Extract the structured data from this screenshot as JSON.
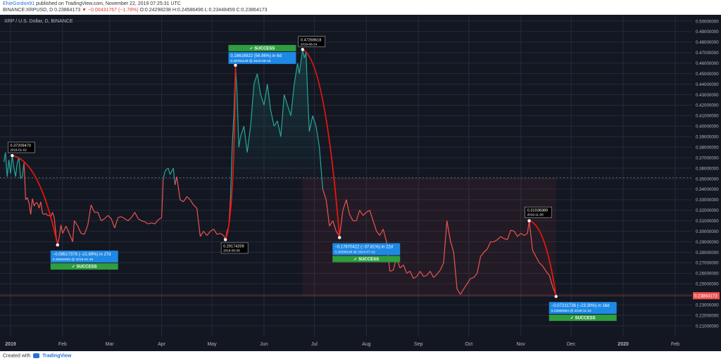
{
  "header": {
    "author": "EhieGordon91",
    "published": "published on TradingView.com, November 22, 2019 07:25:31 UTC",
    "symbol": "BINANCE:XRPUSD, D",
    "last": "0.23864173",
    "change": "▼ −0.00431767 (−1.78%)",
    "ohlc": "O:0.24298238 H:0.24586496 L:0.23448459 C:0.23864173"
  },
  "footer": {
    "created_with": "Created with",
    "brand": "TradingView"
  },
  "colors": {
    "background": "#131722",
    "grid": "#242a38",
    "up_line": "#26a69a",
    "down_line": "#ef5350",
    "curve": "#e8160c",
    "label_blue": "#1e88e5",
    "label_green": "#2e9e3e",
    "last_price": "#ef5350"
  },
  "chart_data": {
    "type": "line",
    "title": "XRP / U.S. Dollar, D, BINANCE",
    "ylim": [
      0.21,
      0.5
    ],
    "y_ticks": [
      "0.21000000",
      "0.22000000",
      "0.23000000",
      "0.24000000",
      "0.25000000",
      "0.26000000",
      "0.27000000",
      "0.28000000",
      "0.29000000",
      "0.30000000",
      "0.31000000",
      "0.32000000",
      "0.33000000",
      "0.34000000",
      "0.35000000",
      "0.36000000",
      "0.37000000",
      "0.38000000",
      "0.39000000",
      "0.40000000",
      "0.41000000",
      "0.42000000",
      "0.43000000",
      "0.44000000",
      "0.45000000",
      "0.46000000",
      "0.47000000",
      "0.48000000",
      "0.49000000",
      "0.50000000"
    ],
    "x_ticks": [
      {
        "label": "2019",
        "date": "2019-01-01"
      },
      {
        "label": "Feb",
        "date": "2019-02-01"
      },
      {
        "label": "Mar",
        "date": "2019-03-01"
      },
      {
        "label": "Apr",
        "date": "2019-04-01"
      },
      {
        "label": "May",
        "date": "2019-05-01"
      },
      {
        "label": "Jun",
        "date": "2019-06-01"
      },
      {
        "label": "Jul",
        "date": "2019-07-01"
      },
      {
        "label": "Aug",
        "date": "2019-08-01"
      },
      {
        "label": "Sep",
        "date": "2019-09-01"
      },
      {
        "label": "Oct",
        "date": "2019-10-01"
      },
      {
        "label": "Nov",
        "date": "2019-11-01"
      },
      {
        "label": "Dec",
        "date": "2019-12-01"
      },
      {
        "label": "2020",
        "date": "2020-01-01"
      },
      {
        "label": "Feb",
        "date": "2020-02-01"
      }
    ],
    "dashed_level": 0.351,
    "last_price": 0.23864173,
    "last_price_label": "0.23864173",
    "series": [
      {
        "points": [
          [
            "2018-12-28",
            0.366
          ],
          [
            "2018-12-29",
            0.375
          ],
          [
            "2018-12-30",
            0.352
          ],
          [
            "2018-12-31",
            0.368
          ],
          [
            "2019-01-01",
            0.355
          ],
          [
            "2019-01-02",
            0.372
          ],
          [
            "2019-01-03",
            0.36
          ],
          [
            "2019-01-04",
            0.352
          ],
          [
            "2019-01-05",
            0.365
          ],
          [
            "2019-01-06",
            0.37
          ],
          [
            "2019-01-07",
            0.35
          ],
          [
            "2019-01-08",
            0.352
          ],
          [
            "2019-01-09",
            0.365
          ],
          [
            "2019-01-10",
            0.33
          ],
          [
            "2019-01-11",
            0.332
          ],
          [
            "2019-01-12",
            0.327
          ],
          [
            "2019-01-13",
            0.316
          ],
          [
            "2019-01-14",
            0.331
          ],
          [
            "2019-01-15",
            0.324
          ],
          [
            "2019-01-16",
            0.327
          ],
          [
            "2019-01-17",
            0.327
          ],
          [
            "2019-01-18",
            0.322
          ],
          [
            "2019-01-19",
            0.328
          ],
          [
            "2019-01-20",
            0.317
          ],
          [
            "2019-01-21",
            0.316
          ],
          [
            "2019-01-22",
            0.317
          ],
          [
            "2019-01-23",
            0.315
          ],
          [
            "2019-01-24",
            0.315
          ],
          [
            "2019-01-25",
            0.314
          ],
          [
            "2019-01-26",
            0.318
          ],
          [
            "2019-01-27",
            0.313
          ],
          [
            "2019-01-28",
            0.297
          ],
          [
            "2019-01-29",
            0.287
          ],
          [
            "2019-01-30",
            0.294
          ],
          [
            "2019-01-31",
            0.306
          ],
          [
            "2019-02-01",
            0.298
          ],
          [
            "2019-02-03",
            0.305
          ],
          [
            "2019-02-05",
            0.298
          ],
          [
            "2019-02-07",
            0.29
          ],
          [
            "2019-02-08",
            0.31
          ],
          [
            "2019-02-10",
            0.305
          ],
          [
            "2019-02-12",
            0.298
          ],
          [
            "2019-02-14",
            0.297
          ],
          [
            "2019-02-16",
            0.306
          ],
          [
            "2019-02-18",
            0.325
          ],
          [
            "2019-02-20",
            0.318
          ],
          [
            "2019-02-22",
            0.318
          ],
          [
            "2019-02-24",
            0.31
          ],
          [
            "2019-02-26",
            0.312
          ],
          [
            "2019-02-28",
            0.315
          ],
          [
            "2019-03-02",
            0.312
          ],
          [
            "2019-03-04",
            0.303
          ],
          [
            "2019-03-06",
            0.313
          ],
          [
            "2019-03-08",
            0.314
          ],
          [
            "2019-03-10",
            0.312
          ],
          [
            "2019-03-12",
            0.31
          ],
          [
            "2019-03-14",
            0.313
          ],
          [
            "2019-03-16",
            0.318
          ],
          [
            "2019-03-18",
            0.312
          ],
          [
            "2019-03-20",
            0.31
          ],
          [
            "2019-03-22",
            0.309
          ],
          [
            "2019-03-24",
            0.307
          ],
          [
            "2019-03-26",
            0.308
          ],
          [
            "2019-03-28",
            0.307
          ],
          [
            "2019-03-30",
            0.311
          ],
          [
            "2019-04-01",
            0.313
          ],
          [
            "2019-04-02",
            0.35
          ],
          [
            "2019-04-03",
            0.357
          ],
          [
            "2019-04-04",
            0.359
          ],
          [
            "2019-04-05",
            0.36
          ],
          [
            "2019-04-06",
            0.354
          ],
          [
            "2019-04-08",
            0.36
          ],
          [
            "2019-04-09",
            0.344
          ],
          [
            "2019-04-10",
            0.352
          ],
          [
            "2019-04-12",
            0.33
          ],
          [
            "2019-04-14",
            0.328
          ],
          [
            "2019-04-16",
            0.333
          ],
          [
            "2019-04-18",
            0.33
          ],
          [
            "2019-04-20",
            0.325
          ],
          [
            "2019-04-22",
            0.322
          ],
          [
            "2019-04-24",
            0.295
          ],
          [
            "2019-04-26",
            0.3
          ],
          [
            "2019-04-28",
            0.296
          ],
          [
            "2019-04-30",
            0.3
          ],
          [
            "2019-05-02",
            0.302
          ],
          [
            "2019-05-04",
            0.297
          ],
          [
            "2019-05-06",
            0.298
          ],
          [
            "2019-05-08",
            0.296
          ],
          [
            "2019-05-09",
            0.292
          ],
          [
            "2019-05-10",
            0.3
          ],
          [
            "2019-05-11",
            0.305
          ],
          [
            "2019-05-12",
            0.33
          ],
          [
            "2019-05-13",
            0.38
          ],
          [
            "2019-05-14",
            0.41
          ],
          [
            "2019-05-15",
            0.458
          ],
          [
            "2019-05-16",
            0.43
          ],
          [
            "2019-05-17",
            0.38
          ],
          [
            "2019-05-18",
            0.39
          ],
          [
            "2019-05-20",
            0.4
          ],
          [
            "2019-05-22",
            0.375
          ],
          [
            "2019-05-24",
            0.4
          ],
          [
            "2019-05-26",
            0.44
          ],
          [
            "2019-05-28",
            0.45
          ],
          [
            "2019-05-30",
            0.43
          ],
          [
            "2019-06-01",
            0.42
          ],
          [
            "2019-06-03",
            0.44
          ],
          [
            "2019-06-05",
            0.415
          ],
          [
            "2019-06-07",
            0.4
          ],
          [
            "2019-06-09",
            0.405
          ],
          [
            "2019-06-11",
            0.39
          ],
          [
            "2019-06-13",
            0.43
          ],
          [
            "2019-06-15",
            0.42
          ],
          [
            "2019-06-17",
            0.41
          ],
          [
            "2019-06-19",
            0.44
          ],
          [
            "2019-06-21",
            0.46
          ],
          [
            "2019-06-22",
            0.45
          ],
          [
            "2019-06-24",
            0.473
          ],
          [
            "2019-06-25",
            0.465
          ],
          [
            "2019-06-26",
            0.47
          ],
          [
            "2019-06-27",
            0.43
          ],
          [
            "2019-06-28",
            0.395
          ],
          [
            "2019-06-30",
            0.41
          ],
          [
            "2019-07-02",
            0.4
          ],
          [
            "2019-07-04",
            0.38
          ],
          [
            "2019-07-06",
            0.34
          ],
          [
            "2019-07-08",
            0.33
          ],
          [
            "2019-07-10",
            0.305
          ],
          [
            "2019-07-12",
            0.31
          ],
          [
            "2019-07-14",
            0.3
          ],
          [
            "2019-07-16",
            0.295
          ],
          [
            "2019-07-18",
            0.32
          ],
          [
            "2019-07-20",
            0.33
          ],
          [
            "2019-07-22",
            0.316
          ],
          [
            "2019-07-24",
            0.31
          ],
          [
            "2019-07-26",
            0.31
          ],
          [
            "2019-07-28",
            0.32
          ],
          [
            "2019-07-30",
            0.315
          ],
          [
            "2019-08-01",
            0.318
          ],
          [
            "2019-08-03",
            0.32
          ],
          [
            "2019-08-05",
            0.31
          ],
          [
            "2019-08-07",
            0.3
          ],
          [
            "2019-08-09",
            0.296
          ],
          [
            "2019-08-11",
            0.302
          ],
          [
            "2019-08-13",
            0.29
          ],
          [
            "2019-08-15",
            0.262
          ],
          [
            "2019-08-17",
            0.263
          ],
          [
            "2019-08-19",
            0.275
          ],
          [
            "2019-08-21",
            0.265
          ],
          [
            "2019-08-23",
            0.268
          ],
          [
            "2019-08-25",
            0.26
          ],
          [
            "2019-08-27",
            0.262
          ],
          [
            "2019-08-29",
            0.255
          ],
          [
            "2019-08-31",
            0.257
          ],
          [
            "2019-09-02",
            0.262
          ],
          [
            "2019-09-04",
            0.257
          ],
          [
            "2019-09-06",
            0.258
          ],
          [
            "2019-09-08",
            0.262
          ],
          [
            "2019-09-10",
            0.256
          ],
          [
            "2019-09-12",
            0.259
          ],
          [
            "2019-09-14",
            0.263
          ],
          [
            "2019-09-16",
            0.27
          ],
          [
            "2019-09-18",
            0.31
          ],
          [
            "2019-09-20",
            0.291
          ],
          [
            "2019-09-22",
            0.28
          ],
          [
            "2019-09-24",
            0.245
          ],
          [
            "2019-09-26",
            0.24
          ],
          [
            "2019-09-28",
            0.245
          ],
          [
            "2019-09-30",
            0.25
          ],
          [
            "2019-10-02",
            0.255
          ],
          [
            "2019-10-04",
            0.256
          ],
          [
            "2019-10-06",
            0.26
          ],
          [
            "2019-10-08",
            0.276
          ],
          [
            "2019-10-10",
            0.28
          ],
          [
            "2019-10-12",
            0.283
          ],
          [
            "2019-10-14",
            0.29
          ],
          [
            "2019-10-16",
            0.29
          ],
          [
            "2019-10-18",
            0.292
          ],
          [
            "2019-10-20",
            0.295
          ],
          [
            "2019-10-22",
            0.293
          ],
          [
            "2019-10-24",
            0.292
          ],
          [
            "2019-10-26",
            0.301
          ],
          [
            "2019-10-28",
            0.3
          ],
          [
            "2019-10-30",
            0.295
          ],
          [
            "2019-11-01",
            0.298
          ],
          [
            "2019-11-03",
            0.296
          ],
          [
            "2019-11-05",
            0.298
          ],
          [
            "2019-11-06",
            0.31
          ],
          [
            "2019-11-08",
            0.282
          ],
          [
            "2019-11-10",
            0.276
          ],
          [
            "2019-11-12",
            0.27
          ],
          [
            "2019-11-14",
            0.267
          ],
          [
            "2019-11-16",
            0.262
          ],
          [
            "2019-11-18",
            0.258
          ],
          [
            "2019-11-20",
            0.247
          ],
          [
            "2019-11-22",
            0.239
          ]
        ]
      }
    ],
    "annotations": [
      {
        "kind": "price",
        "date": "2019-01-02",
        "value": 0.3720947,
        "line1": "0.37209470",
        "line2": "2019-01-02",
        "placement": "above"
      },
      {
        "kind": "price",
        "date": "2019-05-09",
        "value": 0.29174209,
        "line1": "0.29174209",
        "line2": "2019-05-09",
        "placement": "below"
      },
      {
        "kind": "price",
        "date": "2019-06-24",
        "value": 0.47269618,
        "line1": "0.47269618",
        "line2": "2019-06-24",
        "placement": "above"
      },
      {
        "kind": "price",
        "date": "2019-11-06",
        "value": 0.31038389,
        "line1": "0.31038389",
        "line2": "2019-11-06",
        "placement": "above"
      },
      {
        "kind": "change",
        "date": "2019-01-29",
        "value": 0.28692093,
        "line1": "−0.08517378 (−22.89%) in 27d",
        "line2": "0.28692093 @ 2019-01-29",
        "success": "✓ SUCCESS",
        "placement": "below"
      },
      {
        "kind": "change",
        "date": "2019-05-15",
        "value": 0.4579113,
        "line1": "0.16616922 (56.96%) in 6d",
        "line2": "0.45791130 @ 2019-05-15",
        "success": "✓ SUCCESS",
        "placement": "above"
      },
      {
        "kind": "change",
        "date": "2019-07-16",
        "value": 0.29399196,
        "line1": "−0.17870422 (−37.81%) in 22d",
        "line2": "0.29399196 @ 2019-07-16",
        "success": "✓ SUCCESS",
        "placement": "below"
      },
      {
        "kind": "change",
        "date": "2019-11-22",
        "value": 0.23806654,
        "line1": "−0.07231736 (−23.30%) in 16d",
        "line2": "0.23806654 @ 2019-11-22",
        "success": "✓ SUCCESS",
        "placement": "below"
      }
    ],
    "curves": [
      {
        "from": [
          "2019-01-02",
          0.372
        ],
        "to": [
          "2019-01-29",
          0.287
        ]
      },
      {
        "from": [
          "2019-05-09",
          0.292
        ],
        "to": [
          "2019-05-15",
          0.458
        ]
      },
      {
        "from": [
          "2019-06-24",
          0.473
        ],
        "to": [
          "2019-07-16",
          0.294
        ]
      },
      {
        "from": [
          "2019-11-06",
          0.31
        ],
        "to": [
          "2019-11-22",
          0.238
        ]
      }
    ],
    "shaded_ranges": [
      {
        "from": "2019-06-24",
        "to": "2019-11-22",
        "high": 0.351,
        "low": 0.238
      }
    ]
  }
}
